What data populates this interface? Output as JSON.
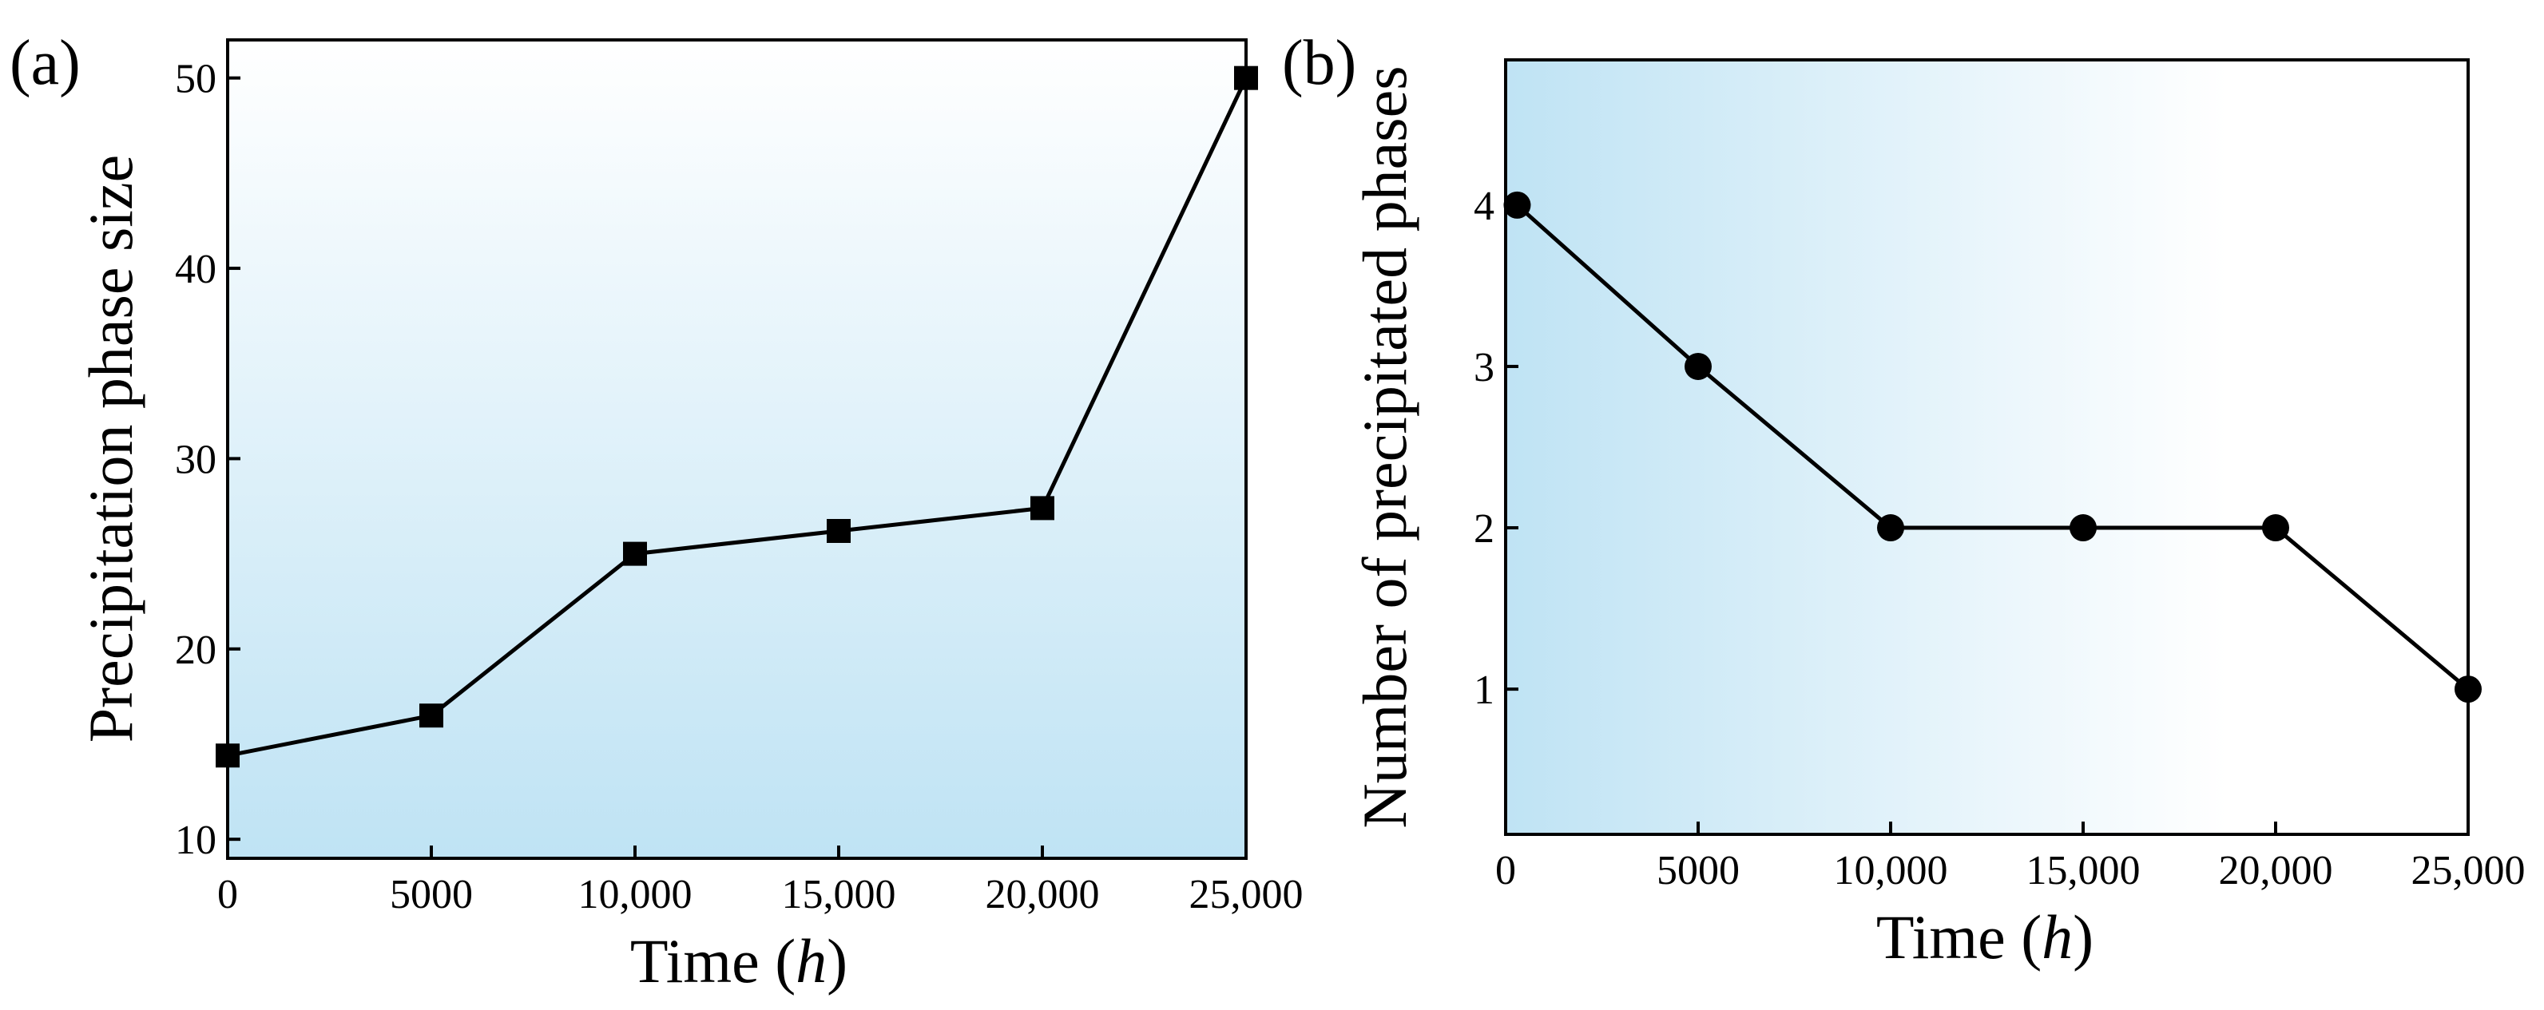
{
  "chart_data": [
    {
      "id": "a",
      "panel_label": "(a)",
      "type": "line",
      "marker": "square",
      "xlabel": "Time (",
      "xlabel_italic": "h",
      "xlabel_suffix": ")",
      "ylabel": "Precipitation phase size",
      "xlim": [
        0,
        25000
      ],
      "ylim": [
        9,
        52
      ],
      "xticks": [
        0,
        5000,
        10000,
        15000,
        20000,
        25000
      ],
      "xtick_labels": [
        "0",
        "5000",
        "10,000",
        "15,000",
        "20,000",
        "25,000"
      ],
      "yticks": [
        10,
        20,
        30,
        40,
        50
      ],
      "ytick_labels": [
        "10",
        "20",
        "30",
        "40",
        "50"
      ],
      "background_gradient": "vertical",
      "gradient_colors": [
        "#ffffff",
        "#bfe3f4"
      ],
      "x": [
        0,
        5000,
        10000,
        15000,
        20000,
        25000
      ],
      "y": [
        14.4,
        16.5,
        25.0,
        26.2,
        27.4,
        50.0
      ]
    },
    {
      "id": "b",
      "panel_label": "(b)",
      "type": "line",
      "marker": "circle",
      "xlabel": "Time (",
      "xlabel_italic": "h",
      "xlabel_suffix": ")",
      "ylabel": "Number of precipitated phases",
      "xlim": [
        0,
        25000
      ],
      "ylim": [
        0.1,
        4.9
      ],
      "xticks": [
        0,
        5000,
        10000,
        15000,
        20000,
        25000
      ],
      "xtick_labels": [
        "0",
        "5000",
        "10,000",
        "15,000",
        "20,000",
        "25,000"
      ],
      "yticks": [
        1,
        2,
        3,
        4
      ],
      "ytick_labels": [
        "1",
        "2",
        "3",
        "4"
      ],
      "background_gradient": "horizontal",
      "gradient_colors": [
        "#bfe3f4",
        "#ffffff"
      ],
      "x": [
        300,
        5000,
        10000,
        15000,
        20000,
        25000
      ],
      "y": [
        4,
        3,
        2,
        2,
        2,
        1
      ]
    }
  ]
}
